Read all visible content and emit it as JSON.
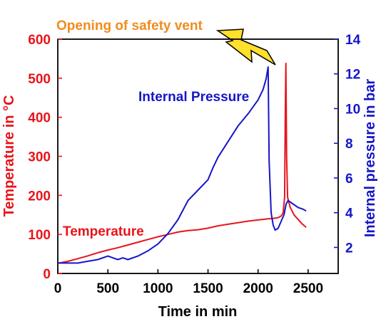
{
  "chart_data": {
    "type": "line",
    "xlabel": "Time in min",
    "ylabel_left": "Temperature in °C",
    "ylabel_right": "Internal pressure in bar",
    "xlim": [
      0,
      2800
    ],
    "ylim_left": [
      0,
      600
    ],
    "ylim_right": [
      0.5,
      14
    ],
    "x_ticks": [
      0,
      500,
      1000,
      1500,
      2000,
      2500
    ],
    "y_left_ticks": [
      0,
      100,
      200,
      300,
      400,
      500,
      600
    ],
    "y_right_ticks": [
      2,
      4,
      6,
      8,
      10,
      12,
      14
    ],
    "grid": false,
    "annotations": {
      "temperature": "Temperature",
      "pressure": "Internal Pressure",
      "vent": "Opening of safety vent"
    },
    "colors": {
      "temperature": "#e8141b",
      "pressure": "#1616c8",
      "vent": "#f08c1e",
      "lightning": "#ffe02a"
    },
    "series": [
      {
        "name": "Temperature",
        "axis": "left",
        "x": [
          0,
          100,
          200,
          300,
          400,
          500,
          600,
          700,
          800,
          900,
          1000,
          1100,
          1200,
          1300,
          1400,
          1500,
          1600,
          1700,
          1800,
          1900,
          2000,
          2100,
          2150,
          2200,
          2230,
          2250,
          2265,
          2272,
          2278,
          2285,
          2295,
          2320,
          2360,
          2400,
          2440,
          2480
        ],
        "y": [
          26,
          31,
          38,
          45,
          53,
          60,
          66,
          73,
          80,
          87,
          94,
          100,
          106,
          110,
          112,
          116,
          122,
          126,
          130,
          134,
          137,
          140,
          141,
          143,
          147,
          155,
          195,
          420,
          538,
          300,
          195,
          170,
          150,
          138,
          127,
          118
        ]
      },
      {
        "name": "Internal Pressure",
        "axis": "right",
        "x": [
          0,
          100,
          200,
          300,
          400,
          500,
          550,
          600,
          650,
          700,
          800,
          900,
          1000,
          1100,
          1200,
          1300,
          1400,
          1500,
          1550,
          1600,
          1700,
          1800,
          1900,
          2000,
          2050,
          2080,
          2100,
          2110,
          2130,
          2150,
          2170,
          2200,
          2230,
          2260,
          2280,
          2300,
          2350,
          2400,
          2450,
          2480
        ],
        "y": [
          1.1,
          1.1,
          1.1,
          1.2,
          1.3,
          1.5,
          1.4,
          1.3,
          1.4,
          1.3,
          1.5,
          1.8,
          2.2,
          2.8,
          3.6,
          4.7,
          5.3,
          5.9,
          6.6,
          7.2,
          8.1,
          9.0,
          9.7,
          10.5,
          11.1,
          11.7,
          12.4,
          7.0,
          4.0,
          3.3,
          3.0,
          3.1,
          3.5,
          3.9,
          4.5,
          4.7,
          4.5,
          4.3,
          4.2,
          4.1
        ]
      }
    ]
  }
}
